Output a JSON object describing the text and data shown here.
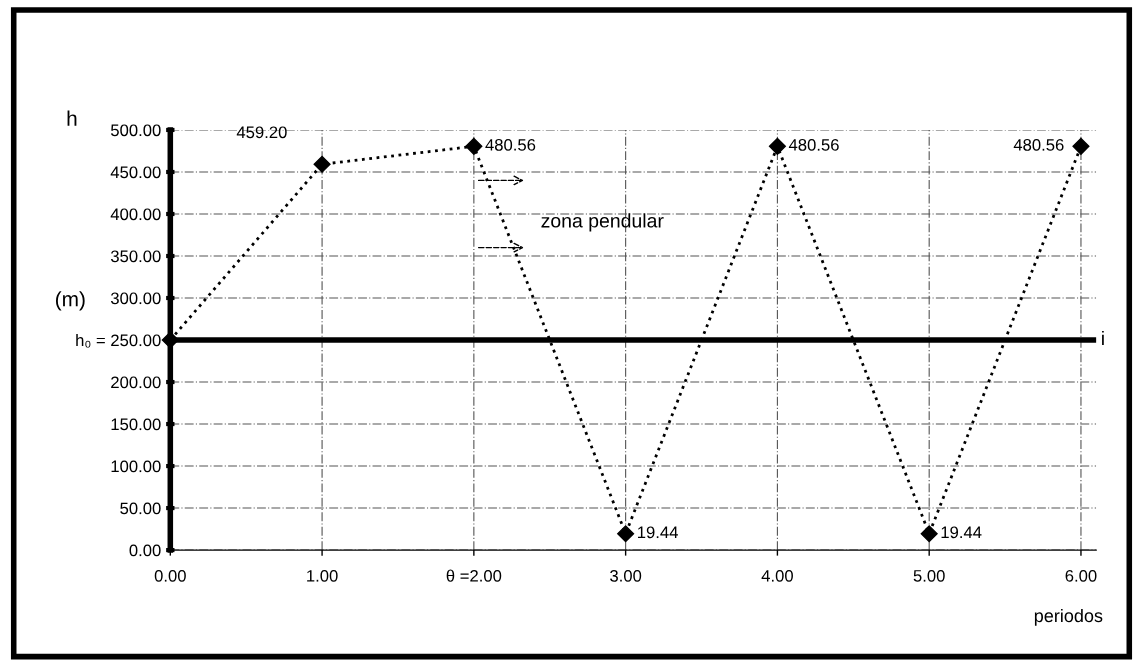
{
  "chart_data": {
    "type": "line",
    "x": [
      0,
      1,
      2,
      3,
      4,
      5,
      6
    ],
    "series": [
      {
        "color": "#000000",
        "values": [
          250,
          459.2,
          480.56,
          19.44,
          480.56,
          19.44,
          480.56
        ],
        "value_labels": [
          null,
          "459.20",
          "480.56",
          "19.44",
          "480.56",
          "19.44",
          "480.56"
        ]
      }
    ],
    "marker": "diamond",
    "line_style": "dotted",
    "xlim": [
      0,
      6.1
    ],
    "xticks": [
      {
        "value": 0,
        "label": "0.00"
      },
      {
        "value": 1,
        "label": "1.00"
      },
      {
        "value": 2,
        "label": "θ =2.00"
      },
      {
        "value": 3,
        "label": "3.00"
      },
      {
        "value": 4,
        "label": "4.00"
      },
      {
        "value": 5,
        "label": "5.00"
      },
      {
        "value": 6,
        "label": "6.00"
      }
    ],
    "ylim": [
      0,
      500
    ],
    "yticks": [
      {
        "value": 0,
        "label": "0.00"
      },
      {
        "value": 50,
        "label": "50.00"
      },
      {
        "value": 100,
        "label": "100.00"
      },
      {
        "value": 150,
        "label": "150.00"
      },
      {
        "value": 200,
        "label": "200.00"
      },
      {
        "value": 250,
        "label": "h₀ = 250.00"
      },
      {
        "value": 300,
        "label": "300.00"
      },
      {
        "value": 350,
        "label": "350.00"
      },
      {
        "value": 400,
        "label": "400.00"
      },
      {
        "value": 450,
        "label": "450.00"
      },
      {
        "value": 500,
        "label": "500.00"
      }
    ],
    "ylabel": "(m)",
    "xlabel": "periodos",
    "grid": true,
    "ref_lines": [
      {
        "axis": "y",
        "value": 250,
        "label": "i",
        "color": "#000000"
      }
    ],
    "annotations": [
      "h",
      "zona pendular"
    ]
  }
}
